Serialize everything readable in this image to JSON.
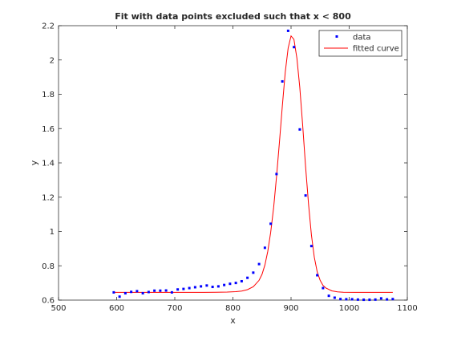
{
  "chart_data": {
    "type": "scatter",
    "title": "Fit with data points excluded such that x < 800",
    "xlabel": "x",
    "ylabel": "y",
    "xlim": [
      500,
      1100
    ],
    "ylim": [
      0.6,
      2.2
    ],
    "xticks": [
      500,
      600,
      700,
      800,
      900,
      1000,
      1100
    ],
    "xtick_labels": [
      "500",
      "600",
      "700",
      "800",
      "900",
      "1000",
      "1100"
    ],
    "yticks": [
      0.6,
      0.8,
      1.0,
      1.2,
      1.4,
      1.6,
      1.8,
      2.0,
      2.2
    ],
    "ytick_labels": [
      "0.6",
      "0.8",
      "1",
      "1.2",
      "1.4",
      "1.6",
      "1.8",
      "2",
      "2.2"
    ],
    "grid": false,
    "legend_position": "top-right",
    "series": [
      {
        "name": "data",
        "kind": "points",
        "color": "#0000ff",
        "x": [
          595,
          605,
          615,
          625,
          635,
          645,
          655,
          665,
          675,
          685,
          695,
          705,
          715,
          725,
          735,
          745,
          755,
          765,
          775,
          785,
          795,
          805,
          815,
          825,
          835,
          845,
          855,
          865,
          875,
          885,
          895,
          905,
          915,
          925,
          935,
          945,
          955,
          965,
          975,
          985,
          995,
          1005,
          1015,
          1025,
          1035,
          1045,
          1055,
          1065,
          1075
        ],
        "y": [
          0.645,
          0.62,
          0.64,
          0.648,
          0.652,
          0.64,
          0.647,
          0.655,
          0.655,
          0.656,
          0.645,
          0.662,
          0.665,
          0.67,
          0.675,
          0.68,
          0.685,
          0.677,
          0.68,
          0.688,
          0.695,
          0.7,
          0.71,
          0.73,
          0.76,
          0.81,
          0.905,
          1.045,
          1.335,
          1.875,
          2.17,
          2.075,
          1.595,
          1.21,
          0.915,
          0.745,
          0.67,
          0.625,
          0.614,
          0.606,
          0.605,
          0.605,
          0.603,
          0.602,
          0.602,
          0.603,
          0.61,
          0.604,
          0.606
        ]
      },
      {
        "name": "fitted curve",
        "kind": "line",
        "color": "#ff0000",
        "x": [
          595,
          620,
          645,
          670,
          695,
          720,
          745,
          770,
          790,
          805,
          815,
          825,
          835,
          845,
          850,
          855,
          860,
          865,
          870,
          875,
          880,
          885,
          890,
          895,
          900,
          905,
          910,
          915,
          920,
          925,
          930,
          935,
          940,
          945,
          950,
          955,
          960,
          970,
          980,
          990,
          1010,
          1040,
          1075
        ],
        "y": [
          0.645,
          0.645,
          0.645,
          0.645,
          0.645,
          0.645,
          0.645,
          0.646,
          0.647,
          0.649,
          0.653,
          0.661,
          0.678,
          0.715,
          0.75,
          0.805,
          0.885,
          0.995,
          1.14,
          1.32,
          1.52,
          1.73,
          1.93,
          2.07,
          2.14,
          2.12,
          2.01,
          1.84,
          1.62,
          1.38,
          1.16,
          0.98,
          0.85,
          0.765,
          0.715,
          0.685,
          0.67,
          0.654,
          0.648,
          0.646,
          0.645,
          0.645,
          0.645
        ]
      }
    ]
  }
}
